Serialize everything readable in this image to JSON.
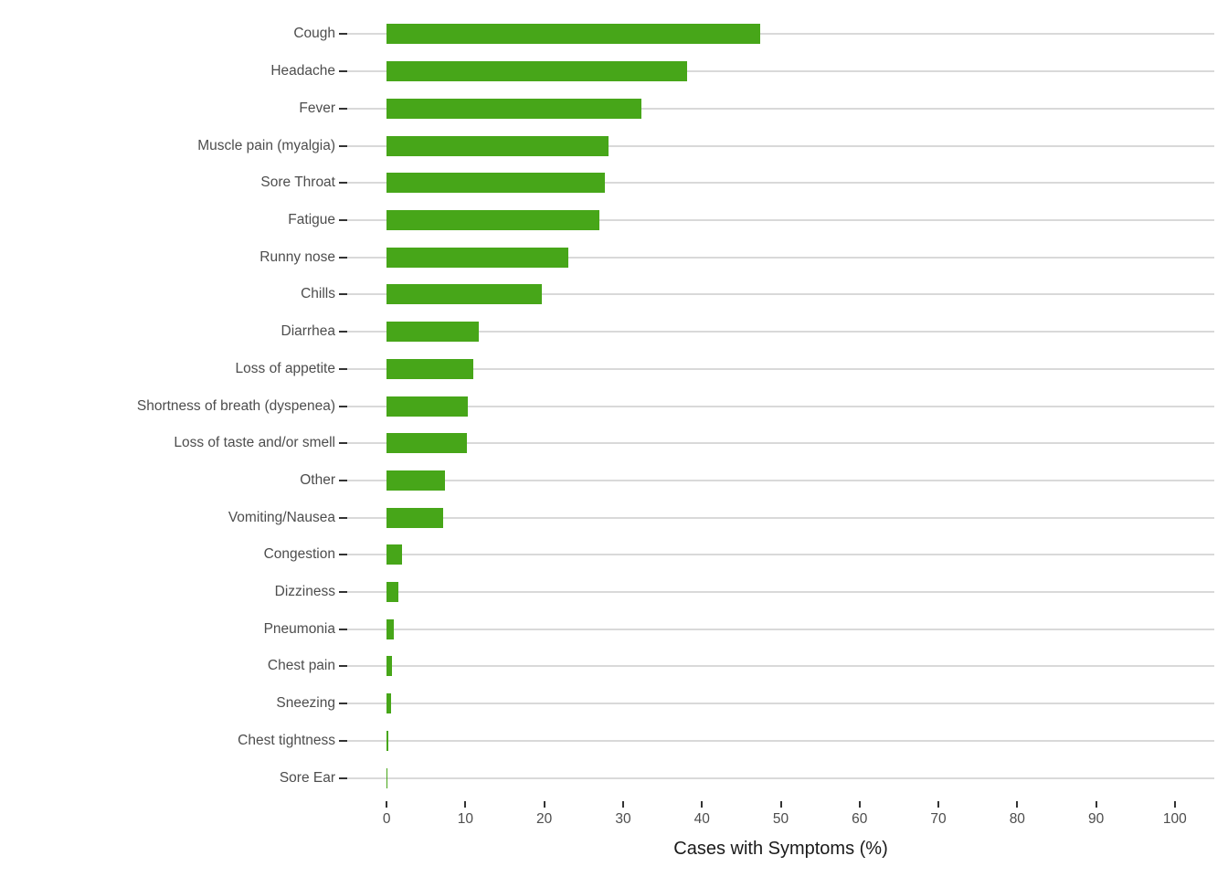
{
  "chart_data": {
    "type": "bar",
    "orientation": "horizontal",
    "title": "",
    "xlabel": "Cases with Symptoms (%)",
    "ylabel": "",
    "categories": [
      "Cough",
      "Headache",
      "Fever",
      "Muscle pain (myalgia)",
      "Sore Throat",
      "Fatigue",
      "Runny nose",
      "Chills",
      "Diarrhea",
      "Loss of appetite",
      "Shortness of breath (dyspenea)",
      "Loss of taste and/or smell",
      "Other",
      "Vomiting/Nausea",
      "Congestion",
      "Dizziness",
      "Pneumonia",
      "Chest pain",
      "Sneezing",
      "Chest tightness",
      "Sore Ear"
    ],
    "values": [
      47.4,
      38.1,
      32.3,
      28.1,
      27.7,
      27.0,
      23.1,
      19.7,
      11.7,
      11.0,
      10.3,
      10.2,
      7.4,
      7.2,
      2.0,
      1.5,
      0.9,
      0.7,
      0.6,
      0.25,
      0.12
    ],
    "xlim": [
      0,
      100
    ],
    "xticks": [
      0,
      10,
      20,
      30,
      40,
      50,
      60,
      70,
      80,
      90,
      100
    ],
    "grid": "horizontal-major-only",
    "legend": "none",
    "colors": {
      "bar": "#47A619",
      "grid": "#D9D9D9",
      "axis_text": "#4D4D4D",
      "axis_title": "#1A1A1A",
      "tick_mark": "#333333",
      "background": "#FFFFFF"
    }
  }
}
